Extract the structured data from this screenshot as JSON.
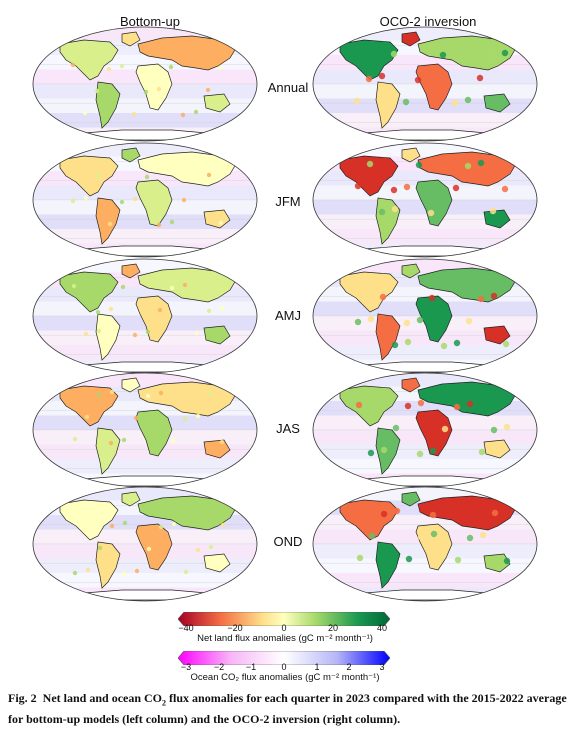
{
  "columns": [
    "Bottom-up",
    "OCO-2 inversion"
  ],
  "rows": [
    "Annual",
    "JFM",
    "AMJ",
    "JAS",
    "OND"
  ],
  "land_colorbar": {
    "ticks": [
      "−40",
      "−20",
      "0",
      "20",
      "40"
    ],
    "label": "Net land flux anomalies (gC m⁻² month⁻¹)",
    "colors": [
      "#a50026",
      "#f46d43",
      "#fee08b",
      "#ffffbf",
      "#a6d96a",
      "#1a9850",
      "#006837"
    ]
  },
  "ocean_colorbar": {
    "ticks": [
      "−3",
      "−2",
      "−1",
      "0",
      "1",
      "2",
      "3"
    ],
    "label": "Ocean CO₂ flux anomalies (gC m⁻² month⁻¹)",
    "colors": [
      "#ff00ff",
      "#f7b6f7",
      "#ffffff",
      "#b6b6f7",
      "#0000ff"
    ]
  },
  "caption": {
    "fig": "Fig. 2",
    "text_part1": "Net land and ocean CO",
    "text_sub": "2",
    "text_part2": " flux anomalies for each quarter in 2023 compared with the 2015-2022 average for bottom-up models (left column) and the OCO-2 inversion (right column)."
  }
}
